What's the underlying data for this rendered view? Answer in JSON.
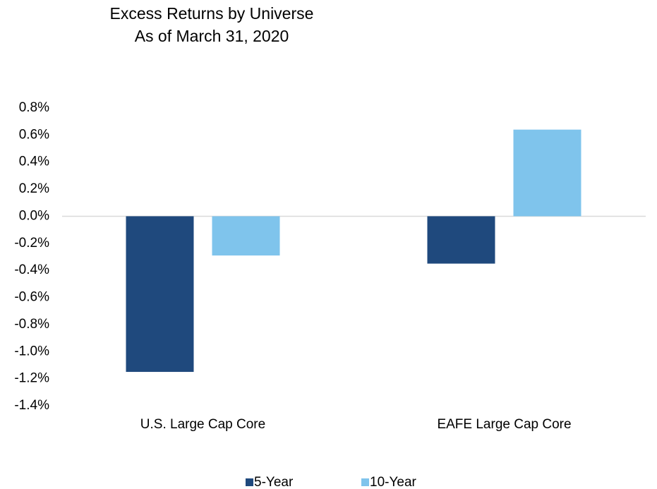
{
  "chart_data": {
    "type": "bar",
    "title": "Excess Returns by Universe",
    "subtitle": "As of March 31, 2020",
    "categories": [
      "U.S. Large Cap Core",
      "EAFE Large Cap Core"
    ],
    "series": [
      {
        "name": "5-Year",
        "color": "#1f497d",
        "values": [
          -1.15,
          -0.35
        ]
      },
      {
        "name": "10-Year",
        "color": "#7fc4ec",
        "values": [
          -0.29,
          0.64
        ]
      }
    ],
    "ylim": [
      -1.4,
      0.8
    ],
    "yticks": [
      {
        "value": 0.8,
        "label": "0.8%"
      },
      {
        "value": 0.6,
        "label": "0.6%"
      },
      {
        "value": 0.4,
        "label": "0.4%"
      },
      {
        "value": 0.2,
        "label": "0.2%"
      },
      {
        "value": 0.0,
        "label": "0.0%"
      },
      {
        "value": -0.2,
        "label": "-0.2%"
      },
      {
        "value": -0.4,
        "label": "-0.4%"
      },
      {
        "value": -0.6,
        "label": "-0.6%"
      },
      {
        "value": -0.8,
        "label": "-0.8%"
      },
      {
        "value": -1.0,
        "label": "-1.0%"
      },
      {
        "value": -1.2,
        "label": "-1.2%"
      },
      {
        "value": -1.4,
        "label": "-1.4%"
      }
    ],
    "grid": false,
    "legend": "bottom"
  }
}
